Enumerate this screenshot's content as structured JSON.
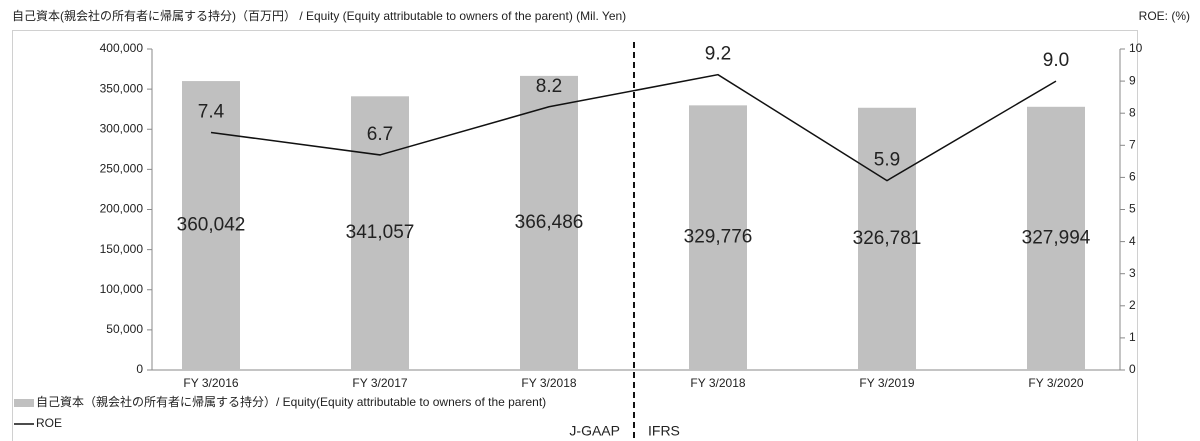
{
  "chart_data": {
    "type": "bar",
    "title": "自己資本(親会社の所有者に帰属する持分)（百万円） / Equity (Equity attributable to owners of the parent) (Mil. Yen)",
    "y2_label": "ROE: (%)",
    "categories": [
      "FY 3/2016",
      "FY 3/2017",
      "FY 3/2018",
      "FY 3/2018",
      "FY 3/2019",
      "FY 3/2020"
    ],
    "series": [
      {
        "name": "自己資本（親会社の所有者に帰属する持分）/ Equity(Equity attributable to owners of the parent)",
        "type": "bar",
        "color": "#c0c0c0",
        "values": [
          360042,
          341057,
          366486,
          329776,
          326781,
          327994
        ],
        "value_labels": [
          "360,042",
          "341,057",
          "366,486",
          "329,776",
          "326,781",
          "327,994"
        ]
      },
      {
        "name": "ROE",
        "type": "line",
        "axis": "y2",
        "color": "#111111",
        "values": [
          7.4,
          6.7,
          8.2,
          9.2,
          5.9,
          9.0
        ],
        "value_labels": [
          "7.4",
          "6.7",
          "8.2",
          "9.2",
          "5.9",
          "9.0"
        ]
      }
    ],
    "ylim": [
      0,
      400000
    ],
    "yticks": [
      0,
      {
        "value": 50000,
        "label": "50,000"
      },
      {
        "value": 100000,
        "label": "100,000"
      },
      {
        "value": 150000,
        "label": "150,000"
      },
      {
        "value": 200000,
        "label": "200,000"
      },
      {
        "value": 250000,
        "label": "250,000"
      },
      {
        "value": 300000,
        "label": "300,000"
      },
      {
        "value": 350000,
        "label": "350,000"
      },
      {
        "value": 400000,
        "label": "400,000"
      }
    ],
    "y2lim": [
      0,
      10
    ],
    "y2ticks": [
      0,
      1,
      2,
      3,
      4,
      5,
      6,
      7,
      8,
      9,
      10
    ],
    "annotations": [
      "J-GAAP",
      "IFRS"
    ],
    "grid": false
  }
}
